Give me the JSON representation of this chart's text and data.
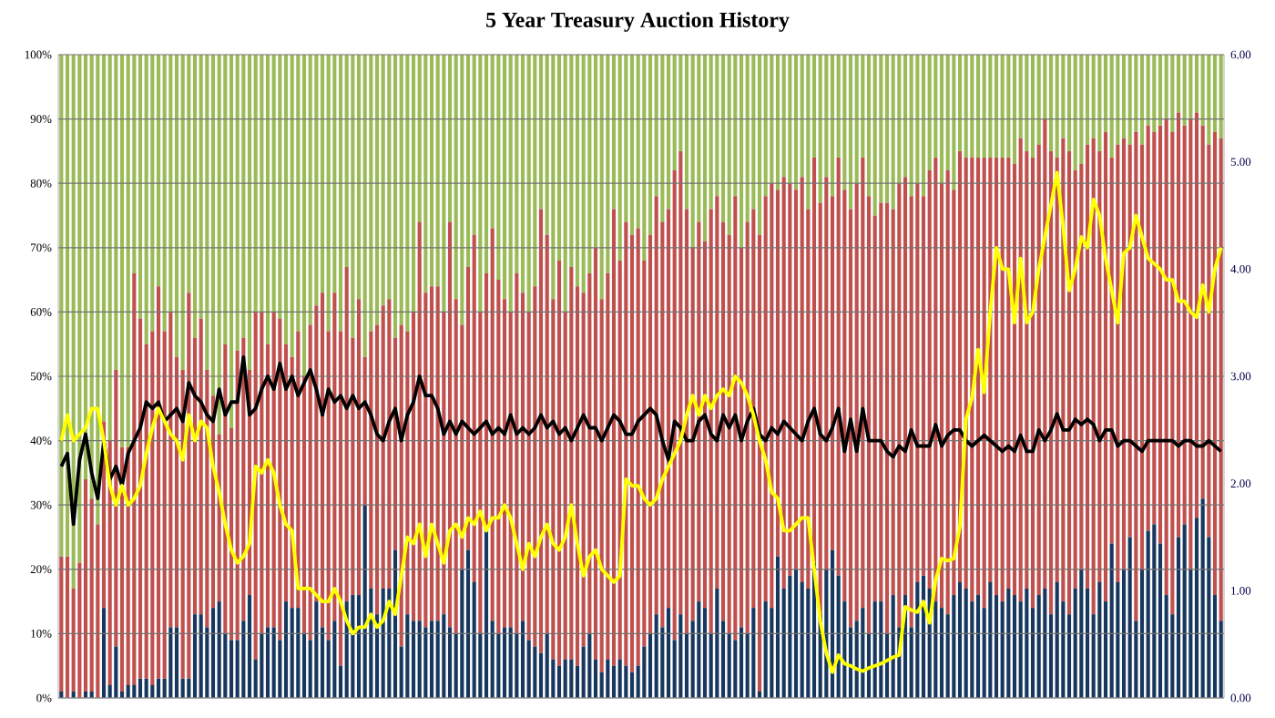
{
  "chart_data": {
    "type": "bar",
    "title": "5 Year Treasury Auction History",
    "stacked": true,
    "grid": "y",
    "categories": [
      null,
      null,
      null,
      null,
      null,
      null,
      null,
      null,
      null,
      null,
      null,
      null,
      null,
      null,
      null,
      null,
      null,
      null,
      null,
      null,
      null,
      null,
      null,
      null,
      null,
      null,
      null,
      null,
      null,
      null,
      null,
      null,
      null,
      null,
      null,
      null,
      null,
      null,
      null,
      null,
      null,
      null,
      null,
      null,
      null,
      null,
      null,
      null,
      null,
      null,
      null,
      null,
      null,
      null,
      null,
      null,
      null,
      null,
      null,
      null,
      null,
      null,
      null,
      null,
      null,
      null,
      null,
      null,
      null,
      null,
      null,
      null,
      null,
      null,
      null,
      null,
      null,
      null,
      null,
      null,
      null,
      null,
      null,
      null,
      null,
      null,
      null,
      null,
      null,
      null,
      null,
      null,
      null,
      null,
      null,
      null,
      null,
      null,
      null,
      null,
      null,
      null,
      null,
      null,
      null,
      null,
      null,
      null,
      null,
      null,
      null,
      null,
      null,
      null,
      null,
      null,
      null,
      null,
      null,
      null,
      null,
      null,
      null,
      null,
      null,
      null,
      null,
      null,
      null,
      null,
      null,
      null,
      null,
      null,
      null,
      null,
      null,
      null,
      null,
      null,
      null,
      null,
      null,
      null,
      null,
      null,
      null,
      null,
      null,
      null,
      null,
      null,
      null,
      null,
      null,
      null,
      null,
      null,
      null,
      null,
      null,
      null,
      null,
      null,
      null,
      null,
      null,
      null,
      null,
      null,
      null,
      null,
      null,
      null,
      null,
      null,
      null,
      null,
      null,
      null,
      null,
      null,
      null,
      null,
      null,
      null,
      null,
      null,
      null,
      null,
      null,
      null
    ],
    "ylim": [
      0,
      100
    ],
    "yticks": [
      {
        "value": 0,
        "label": "0%"
      },
      {
        "value": 10,
        "label": "10%"
      },
      {
        "value": 20,
        "label": "20%"
      },
      {
        "value": 30,
        "label": "30%"
      },
      {
        "value": 40,
        "label": "40%"
      },
      {
        "value": 50,
        "label": "50%"
      },
      {
        "value": 60,
        "label": "60%"
      },
      {
        "value": 70,
        "label": "70%"
      },
      {
        "value": 80,
        "label": "80%"
      },
      {
        "value": 90,
        "label": "90%"
      },
      {
        "value": 100,
        "label": "100%"
      }
    ],
    "y2lim": [
      0,
      6
    ],
    "y2ticks": [
      {
        "value": 0,
        "label": "0.00"
      },
      {
        "value": 1,
        "label": "1.00"
      },
      {
        "value": 2,
        "label": "2.00"
      },
      {
        "value": 3,
        "label": "3.00"
      },
      {
        "value": 4,
        "label": "4.00"
      },
      {
        "value": 5,
        "label": "5.00"
      },
      {
        "value": 6,
        "label": "6.00"
      }
    ],
    "series": [
      {
        "color": "#17375e",
        "values": [
          1,
          0,
          1,
          0,
          1,
          1,
          0,
          14,
          2,
          8,
          1,
          2,
          2,
          3,
          3,
          2,
          3,
          3,
          11,
          11,
          3,
          3,
          13,
          13,
          11,
          14,
          15,
          10,
          9,
          9,
          12,
          16,
          6,
          10,
          11,
          11,
          9,
          15,
          14,
          14,
          10,
          9,
          15,
          11,
          9,
          12,
          5,
          15,
          16,
          16,
          30,
          17,
          13,
          17,
          17,
          23,
          8,
          13,
          12,
          12,
          11,
          12,
          12,
          13,
          11,
          10,
          20,
          23,
          18,
          10,
          26,
          12,
          10,
          11,
          11,
          10,
          12,
          9,
          8,
          7,
          10,
          6,
          5,
          6,
          6,
          5,
          8,
          10,
          6,
          4,
          6,
          5,
          6,
          5,
          4,
          5,
          8,
          10,
          13,
          11,
          14,
          9,
          13,
          10,
          12,
          15,
          14,
          10,
          17,
          12,
          10,
          9,
          11,
          10,
          14,
          1,
          15,
          14,
          22,
          17,
          19,
          20,
          18,
          17,
          21,
          13,
          20,
          23,
          19,
          15,
          11,
          12,
          14,
          10,
          15,
          15,
          10,
          16,
          11,
          16,
          11,
          18,
          19,
          17,
          15,
          14,
          13,
          16,
          18,
          17,
          15,
          16,
          14,
          18,
          16,
          15,
          17,
          16,
          15,
          17,
          14,
          16,
          17,
          13,
          18,
          15,
          13,
          17,
          20,
          17,
          13,
          18,
          15,
          24,
          18,
          20,
          25,
          12,
          20,
          26,
          27,
          24,
          16,
          13,
          25,
          27,
          20,
          28,
          31,
          25,
          16,
          12
        ]
      },
      {
        "color": "#c0504d",
        "values": [
          21,
          22,
          16,
          21,
          33,
          30,
          27,
          29,
          38,
          43,
          38,
          37,
          64,
          56,
          52,
          55,
          61,
          54,
          49,
          42,
          48,
          60,
          43,
          46,
          40,
          33,
          26,
          45,
          33,
          45,
          44,
          35,
          54,
          50,
          44,
          49,
          50,
          40,
          39,
          43,
          40,
          49,
          46,
          52,
          48,
          51,
          52,
          52,
          40,
          46,
          23,
          40,
          45,
          44,
          45,
          33,
          50,
          44,
          48,
          62,
          52,
          52,
          52,
          47,
          63,
          52,
          38,
          44,
          54,
          50,
          40,
          61,
          55,
          51,
          49,
          56,
          51,
          51,
          56,
          69,
          62,
          56,
          63,
          54,
          61,
          59,
          55,
          56,
          64,
          58,
          60,
          71,
          62,
          69,
          68,
          68,
          60,
          62,
          65,
          63,
          62,
          73,
          72,
          66,
          58,
          59,
          57,
          66,
          61,
          62,
          62,
          69,
          59,
          64,
          62,
          71,
          63,
          66,
          57,
          64,
          61,
          59,
          63,
          59,
          63,
          64,
          61,
          55,
          65,
          64,
          65,
          68,
          70,
          68,
          60,
          62,
          67,
          60,
          69,
          65,
          67,
          62,
          59,
          65,
          69,
          66,
          69,
          63,
          67,
          67,
          69,
          68,
          70,
          66,
          68,
          69,
          67,
          67,
          72,
          68,
          70,
          70,
          73,
          72,
          66,
          72,
          72,
          65,
          63,
          69,
          74,
          67,
          73,
          60,
          68,
          67,
          61,
          76,
          66,
          63,
          61,
          65,
          74,
          75,
          66,
          62,
          70,
          63,
          58,
          61,
          72,
          75
        ]
      },
      {
        "color": "#9bbb59",
        "values": [
          78,
          78,
          83,
          79,
          66,
          69,
          73,
          57,
          60,
          49,
          61,
          61,
          34,
          41,
          45,
          43,
          36,
          43,
          40,
          47,
          49,
          37,
          44,
          41,
          49,
          53,
          59,
          45,
          58,
          46,
          44,
          49,
          40,
          40,
          45,
          40,
          41,
          45,
          47,
          43,
          50,
          42,
          39,
          37,
          43,
          37,
          43,
          33,
          44,
          38,
          47,
          43,
          42,
          39,
          38,
          44,
          42,
          43,
          40,
          26,
          37,
          36,
          36,
          40,
          26,
          38,
          42,
          33,
          28,
          40,
          34,
          27,
          35,
          38,
          40,
          34,
          37,
          40,
          36,
          24,
          28,
          38,
          32,
          40,
          33,
          36,
          37,
          34,
          30,
          38,
          34,
          24,
          32,
          26,
          28,
          27,
          32,
          28,
          22,
          26,
          24,
          18,
          15,
          24,
          30,
          26,
          29,
          24,
          22,
          26,
          28,
          22,
          30,
          26,
          24,
          28,
          22,
          20,
          21,
          19,
          20,
          21,
          19,
          24,
          16,
          23,
          19,
          22,
          16,
          21,
          24,
          20,
          16,
          22,
          25,
          23,
          23,
          24,
          20,
          19,
          22,
          20,
          22,
          18,
          16,
          20,
          18,
          21,
          15,
          16,
          16,
          16,
          16,
          16,
          16,
          16,
          16,
          17,
          13,
          15,
          16,
          14,
          10,
          15,
          16,
          13,
          15,
          18,
          17,
          14,
          13,
          15,
          12,
          16,
          14,
          13,
          14,
          12,
          14,
          11,
          12,
          11,
          10,
          12,
          9,
          11,
          10,
          9,
          11,
          14,
          12,
          13
        ]
      },
      {
        "type": "line",
        "axis": "y2",
        "color": "#000000",
        "values": [
          2.16,
          2.28,
          1.62,
          2.22,
          2.46,
          2.1,
          1.86,
          2.4,
          2.04,
          2.16,
          1.98,
          2.28,
          2.4,
          2.52,
          2.76,
          2.7,
          2.76,
          2.58,
          2.64,
          2.7,
          2.58,
          2.94,
          2.82,
          2.76,
          2.64,
          2.58,
          2.88,
          2.64,
          2.76,
          2.76,
          3.18,
          2.64,
          2.7,
          2.88,
          3.0,
          2.88,
          3.12,
          2.88,
          3.0,
          2.82,
          2.94,
          3.06,
          2.88,
          2.64,
          2.88,
          2.76,
          2.82,
          2.7,
          2.82,
          2.7,
          2.76,
          2.64,
          2.46,
          2.4,
          2.58,
          2.7,
          2.4,
          2.64,
          2.76,
          3.0,
          2.82,
          2.82,
          2.7,
          2.46,
          2.58,
          2.46,
          2.58,
          2.52,
          2.46,
          2.52,
          2.58,
          2.46,
          2.52,
          2.46,
          2.64,
          2.46,
          2.52,
          2.46,
          2.52,
          2.64,
          2.52,
          2.58,
          2.46,
          2.52,
          2.4,
          2.52,
          2.64,
          2.52,
          2.52,
          2.4,
          2.52,
          2.64,
          2.58,
          2.46,
          2.46,
          2.58,
          2.64,
          2.7,
          2.64,
          2.4,
          2.22,
          2.58,
          2.52,
          2.4,
          2.4,
          2.58,
          2.64,
          2.46,
          2.4,
          2.64,
          2.52,
          2.64,
          2.4,
          2.58,
          2.7,
          2.46,
          2.4,
          2.52,
          2.46,
          2.58,
          2.52,
          2.46,
          2.4,
          2.58,
          2.7,
          2.46,
          2.4,
          2.52,
          2.7,
          2.3,
          2.6,
          2.3,
          2.7,
          2.4,
          2.4,
          2.4,
          2.3,
          2.25,
          2.35,
          2.3,
          2.5,
          2.35,
          2.35,
          2.35,
          2.55,
          2.35,
          2.45,
          2.5,
          2.5,
          2.4,
          2.35,
          2.4,
          2.45,
          2.4,
          2.35,
          2.3,
          2.35,
          2.3,
          2.45,
          2.3,
          2.3,
          2.5,
          2.4,
          2.5,
          2.65,
          2.5,
          2.5,
          2.6,
          2.55,
          2.6,
          2.55,
          2.4,
          2.5,
          2.5,
          2.35,
          2.4,
          2.4,
          2.35,
          2.3,
          2.4,
          2.4,
          2.4,
          2.4,
          2.4,
          2.35,
          2.4,
          2.4,
          2.35,
          2.35,
          2.4,
          2.35,
          2.3
        ]
      },
      {
        "type": "line",
        "axis": "y2",
        "color": "#ffff00",
        "values": [
          2.4,
          2.64,
          2.4,
          2.46,
          2.52,
          2.7,
          2.7,
          2.4,
          1.98,
          1.8,
          1.98,
          1.8,
          1.86,
          1.98,
          2.28,
          2.52,
          2.7,
          2.58,
          2.46,
          2.4,
          2.22,
          2.64,
          2.4,
          2.58,
          2.52,
          2.16,
          1.92,
          1.62,
          1.38,
          1.26,
          1.32,
          1.44,
          2.16,
          2.1,
          2.22,
          2.1,
          1.8,
          1.62,
          1.56,
          1.02,
          1.02,
          1.02,
          0.96,
          0.9,
          0.9,
          1.02,
          0.9,
          0.72,
          0.6,
          0.66,
          0.66,
          0.78,
          0.66,
          0.72,
          0.9,
          0.78,
          1.14,
          1.5,
          1.44,
          1.62,
          1.32,
          1.62,
          1.44,
          1.26,
          1.56,
          1.62,
          1.5,
          1.68,
          1.62,
          1.74,
          1.56,
          1.68,
          1.68,
          1.8,
          1.68,
          1.44,
          1.2,
          1.44,
          1.32,
          1.5,
          1.62,
          1.44,
          1.38,
          1.5,
          1.8,
          1.44,
          1.14,
          1.32,
          1.38,
          1.2,
          1.14,
          1.08,
          1.14,
          2.04,
          1.98,
          1.98,
          1.86,
          1.8,
          1.86,
          2.04,
          2.16,
          2.28,
          2.4,
          2.64,
          2.82,
          2.64,
          2.82,
          2.7,
          2.82,
          2.88,
          2.82,
          3.0,
          2.94,
          2.82,
          2.64,
          2.4,
          2.22,
          1.92,
          1.86,
          1.56,
          1.56,
          1.62,
          1.68,
          1.68,
          1.2,
          0.72,
          0.42,
          0.24,
          0.4,
          0.32,
          0.3,
          0.27,
          0.25,
          0.28,
          0.3,
          0.32,
          0.35,
          0.38,
          0.4,
          0.85,
          0.82,
          0.8,
          0.9,
          0.7,
          1.1,
          1.3,
          1.28,
          1.3,
          1.6,
          2.6,
          2.8,
          3.25,
          2.85,
          3.6,
          4.2,
          4.0,
          4.0,
          3.5,
          4.1,
          3.5,
          3.6,
          4.0,
          4.3,
          4.6,
          4.9,
          4.4,
          3.8,
          4.0,
          4.3,
          4.2,
          4.65,
          4.5,
          4.1,
          3.8,
          3.5,
          4.15,
          4.2,
          4.5,
          4.3,
          4.1,
          4.05,
          4.0,
          3.9,
          3.9,
          3.7,
          3.7,
          3.6,
          3.55,
          3.85,
          3.6,
          4.0,
          4.2
        ]
      }
    ]
  }
}
